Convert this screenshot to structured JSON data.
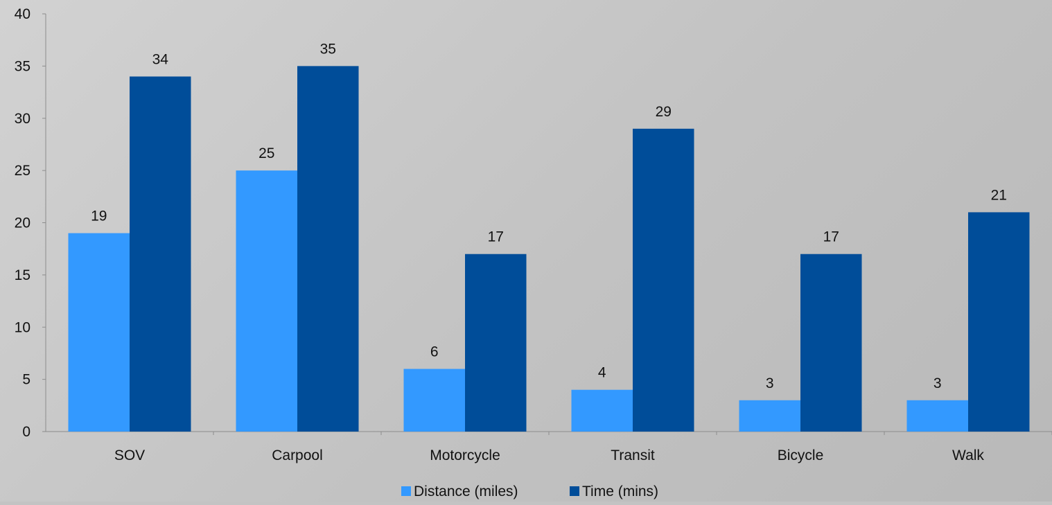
{
  "chart_data": {
    "type": "bar",
    "categories": [
      "SOV",
      "Carpool",
      "Motorcycle",
      "Transit",
      "Bicycle",
      "Walk"
    ],
    "series": [
      {
        "name": "Distance (miles)",
        "values": [
          19,
          25,
          6,
          4,
          3,
          3
        ],
        "color": "#3399ff"
      },
      {
        "name": "Time (mins)",
        "values": [
          34,
          35,
          17,
          29,
          17,
          21
        ],
        "color": "#004d99"
      }
    ],
    "title": "",
    "xlabel": "",
    "ylabel": "",
    "ylim": [
      0,
      40
    ],
    "yticks": [
      0,
      5,
      10,
      15,
      20,
      25,
      30,
      35,
      40
    ],
    "grid": false,
    "legend": "bottom-center",
    "data_labels": true
  }
}
